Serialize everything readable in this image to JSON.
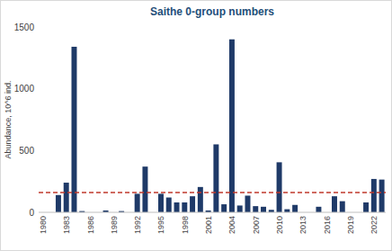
{
  "chart_data": {
    "type": "bar",
    "title": "Saithe 0-group numbers",
    "y_label": "Abundance, 10^6 ind.",
    "categories": [
      "1980",
      null,
      null,
      "1983",
      null,
      null,
      "1986",
      null,
      null,
      "1989",
      null,
      null,
      "1992",
      null,
      null,
      "1995",
      null,
      null,
      "1998",
      null,
      null,
      "2001",
      null,
      null,
      "2004",
      null,
      null,
      "2007",
      null,
      null,
      "2010",
      null,
      null,
      "2013",
      null,
      null,
      "2016",
      null,
      null,
      "2019",
      null,
      null,
      "2022",
      null
    ],
    "values": [
      0,
      0,
      140,
      240,
      1340,
      10,
      0,
      0,
      15,
      0,
      10,
      0,
      150,
      370,
      0,
      150,
      120,
      80,
      80,
      130,
      205,
      15,
      550,
      65,
      1400,
      55,
      135,
      50,
      45,
      20,
      405,
      25,
      60,
      0,
      0,
      45,
      0,
      130,
      90,
      0,
      0,
      80,
      270,
      265
    ],
    "color": "#1f3a68",
    "reference_line": 160,
    "ylim": [
      0,
      1500
    ],
    "yticks": [
      0,
      500,
      1000,
      1500
    ],
    "grid": false
  }
}
